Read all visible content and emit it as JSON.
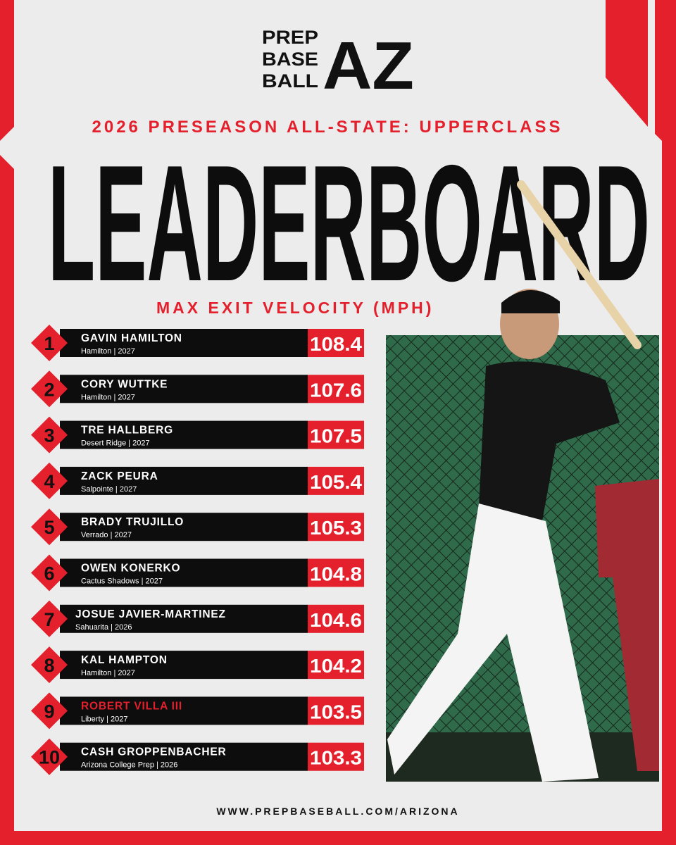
{
  "logo": {
    "lines": [
      "PREP",
      "BASE",
      "BALL"
    ],
    "mark": "AZ"
  },
  "subtitle": "2026 PRESEASON ALL-STATE: UPPERCLASS",
  "title": "LEADERBOARD",
  "metric": "MAX EXIT VELOCITY (MPH)",
  "rows": [
    {
      "rank": 1,
      "name": "GAVIN HAMILTON",
      "info": "Hamilton | 2027",
      "value": 108.4
    },
    {
      "rank": 2,
      "name": "CORY WUTTKE",
      "info": "Hamilton | 2027",
      "value": 107.6
    },
    {
      "rank": 3,
      "name": "TRE HALLBERG",
      "info": "Desert Ridge | 2027",
      "value": 107.5
    },
    {
      "rank": 4,
      "name": "ZACK PEURA",
      "info": "Salpointe | 2027",
      "value": 105.4
    },
    {
      "rank": 5,
      "name": "BRADY TRUJILLO",
      "info": "Verrado | 2027",
      "value": 105.3
    },
    {
      "rank": 6,
      "name": "OWEN KONERKO",
      "info": "Cactus Shadows | 2027",
      "value": 104.8
    },
    {
      "rank": 7,
      "name": "JOSUE JAVIER-MARTINEZ",
      "info": "Sahuarita | 2026",
      "value": 104.6
    },
    {
      "rank": 8,
      "name": "KAL HAMPTON",
      "info": "Hamilton | 2027",
      "value": 104.2
    },
    {
      "rank": 9,
      "name": "ROBERT VILLA III",
      "info": "Liberty | 2027",
      "value": 103.5
    },
    {
      "rank": 10,
      "name": "CASH GROPPENBACHER",
      "info": "Arizona College Prep | 2026",
      "value": 103.3
    }
  ],
  "footer": "WWW.PREPBASEBALL.COM/ARIZONA"
}
